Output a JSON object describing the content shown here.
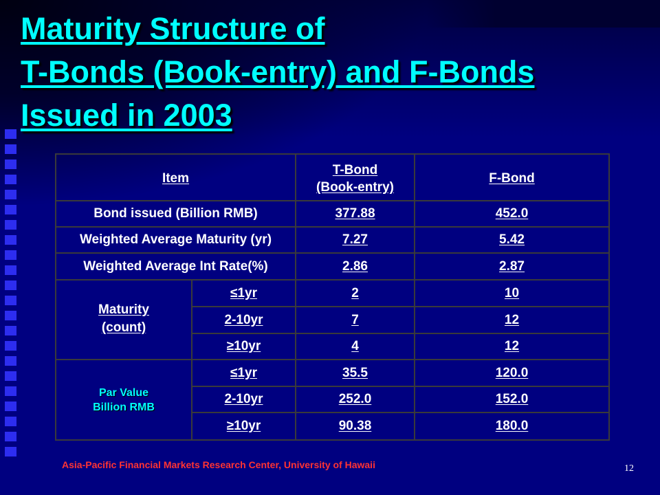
{
  "slide": {
    "title_lines": [
      "Maturity Structure of",
      "T-Bonds (Book-entry) and F-Bonds",
      "Issued in 2003"
    ],
    "footer": "Asia-Pacific Financial Markets Research Center, University of Hawaii",
    "page_number": "12"
  },
  "table": {
    "headers": {
      "item": "Item",
      "tbond_line1": "T-Bond",
      "tbond_line2": "(Book-entry)",
      "fbond": "F-Bond"
    },
    "summary_rows": [
      {
        "label": "Bond issued (Billion RMB)",
        "tbond": "377.88",
        "fbond": "452.0"
      },
      {
        "label": "Weighted Average Maturity (yr)",
        "tbond": "7.27",
        "fbond": "5.42"
      },
      {
        "label": "Weighted Average Int Rate(%)",
        "tbond": "2.86",
        "fbond": "2.87"
      }
    ],
    "maturity_group": {
      "label_line1": "Maturity",
      "label_line2": "(count)",
      "rows": [
        {
          "bucket": "≤1yr",
          "tbond": "2",
          "fbond": "10"
        },
        {
          "bucket": "2-10yr",
          "tbond": "7",
          "fbond": "12"
        },
        {
          "bucket": "≥10yr",
          "tbond": "4",
          "fbond": "12"
        }
      ]
    },
    "par_group": {
      "label_line1": "Par Value",
      "label_line2": "Billion RMB",
      "rows": [
        {
          "bucket": "≤1yr",
          "tbond": "35.5",
          "fbond": "120.0"
        },
        {
          "bucket": "2-10yr",
          "tbond": "252.0",
          "fbond": "152.0"
        },
        {
          "bucket": "≥10yr",
          "tbond": "90.38",
          "fbond": "180.0"
        }
      ]
    }
  }
}
